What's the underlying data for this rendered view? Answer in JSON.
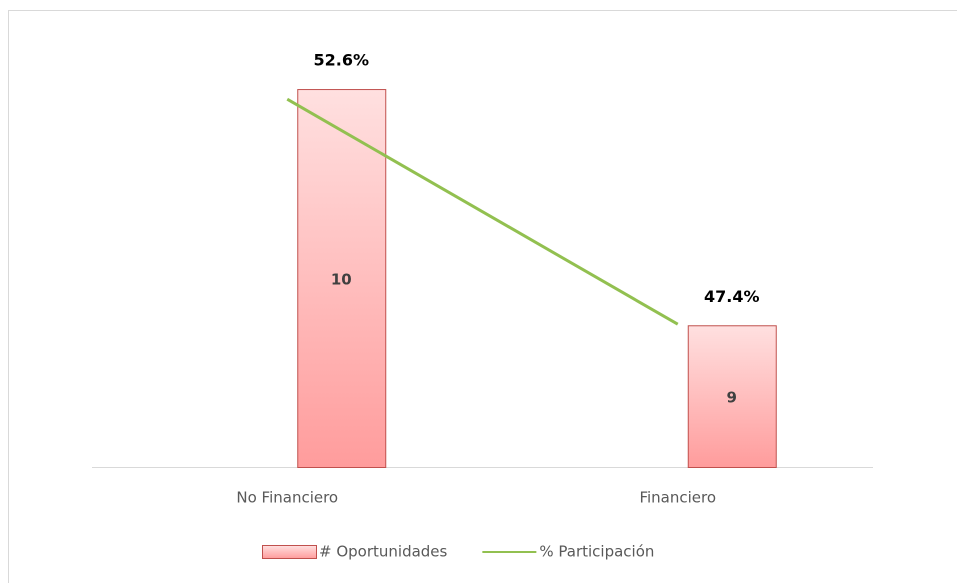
{
  "chart_data": {
    "type": "bar",
    "categories": [
      "No Financiero",
      "Financiero"
    ],
    "series": [
      {
        "name": "# Oportunidades",
        "type": "bar",
        "color": "#ff9999",
        "values": [
          10,
          9
        ]
      },
      {
        "name": "% Participación",
        "type": "line",
        "axis": "y2",
        "color": "#92c050",
        "values": [
          52.6,
          47.4
        ],
        "value_labels": [
          "52.6%",
          "47.4%"
        ]
      }
    ],
    "ylim": [
      8.4,
      10.25
    ],
    "y2lim": [
      44.1,
      54.2
    ],
    "legend": "bottom"
  }
}
